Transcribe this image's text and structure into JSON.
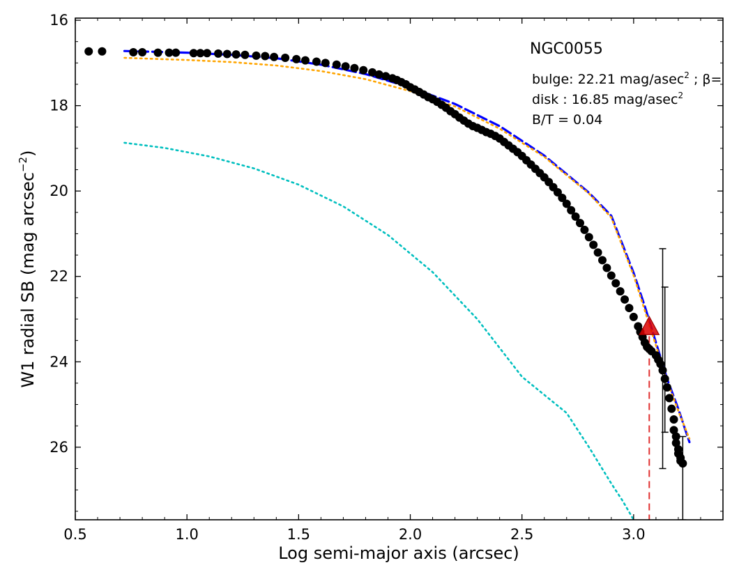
{
  "chart_data": {
    "type": "scatter",
    "xlabel": "Log semi-major axis (arcsec)",
    "ylabel_main": "W1 radial SB (mag arcsec",
    "ylabel_sup": "−2",
    "ylabel_close": ")",
    "xlim": [
      0.5,
      3.4
    ],
    "ylim": [
      27.7,
      15.95
    ],
    "y_inverted": true,
    "grid": false,
    "x_ticks": [
      0.5,
      1.0,
      1.5,
      2.0,
      2.5,
      3.0
    ],
    "x_tick_labels": [
      "0.5",
      "1.0",
      "1.5",
      "2.0",
      "2.5",
      "3.0"
    ],
    "y_ticks": [
      16,
      18,
      20,
      22,
      24,
      26
    ],
    "y_tick_labels": [
      "16",
      "18",
      "20",
      "22",
      "24",
      "26"
    ],
    "annotations": {
      "galaxy": "NGC0055",
      "bulge_prefix": "bulge: 22.21 mag/asec",
      "bulge_sup": "2",
      "bulge_suffix": " ; β=",
      "disk_prefix": "disk  : 16.85 mag/asec",
      "disk_sup": "2",
      "bt": "B/T = 0.04"
    },
    "series": [
      {
        "kind": "points",
        "color": "#000000",
        "x": [
          0.56,
          0.62,
          0.76,
          0.8,
          0.87,
          0.92,
          0.95,
          1.03,
          1.06,
          1.09,
          1.14,
          1.18,
          1.22,
          1.26,
          1.31,
          1.35,
          1.39,
          1.44,
          1.49,
          1.53,
          1.58,
          1.62,
          1.67,
          1.71,
          1.75,
          1.79,
          1.83,
          1.86,
          1.89,
          1.92,
          1.94,
          1.96,
          1.98,
          2.0,
          2.02,
          2.04,
          2.06,
          2.08,
          2.1,
          2.12,
          2.14,
          2.16,
          2.18,
          2.2,
          2.22,
          2.24,
          2.26,
          2.28,
          2.3,
          2.32,
          2.34,
          2.36,
          2.38,
          2.4,
          2.42,
          2.44,
          2.46,
          2.48,
          2.5,
          2.52,
          2.54,
          2.56,
          2.58,
          2.6,
          2.62,
          2.64,
          2.66,
          2.68,
          2.7,
          2.72,
          2.74,
          2.76,
          2.78,
          2.8,
          2.82,
          2.84,
          2.86,
          2.88,
          2.9,
          2.92,
          2.94,
          2.96,
          2.98,
          3.0,
          3.02,
          3.03,
          3.04,
          3.05,
          3.06,
          3.07,
          3.08,
          3.1,
          3.11,
          3.12,
          3.13,
          3.14,
          3.15,
          3.16,
          3.17,
          3.18,
          3.18,
          3.19,
          3.19,
          3.2,
          3.2,
          3.21,
          3.21,
          3.22
        ],
        "y": [
          16.73,
          16.73,
          16.75,
          16.75,
          16.76,
          16.76,
          16.76,
          16.77,
          16.77,
          16.77,
          16.78,
          16.79,
          16.8,
          16.81,
          16.83,
          16.84,
          16.86,
          16.88,
          16.91,
          16.94,
          16.97,
          17.0,
          17.04,
          17.08,
          17.12,
          17.17,
          17.22,
          17.27,
          17.31,
          17.36,
          17.4,
          17.45,
          17.5,
          17.57,
          17.62,
          17.68,
          17.74,
          17.8,
          17.85,
          17.91,
          17.98,
          18.05,
          18.13,
          18.2,
          18.28,
          18.35,
          18.42,
          18.48,
          18.52,
          18.57,
          18.62,
          18.66,
          18.71,
          18.77,
          18.85,
          18.93,
          19.01,
          19.09,
          19.18,
          19.28,
          19.38,
          19.48,
          19.58,
          19.68,
          19.79,
          19.91,
          20.03,
          20.16,
          20.3,
          20.45,
          20.6,
          20.75,
          20.91,
          21.08,
          21.26,
          21.44,
          21.62,
          21.8,
          21.98,
          22.16,
          22.35,
          22.54,
          22.74,
          22.95,
          23.17,
          23.3,
          23.42,
          23.55,
          23.65,
          23.7,
          23.75,
          23.85,
          23.95,
          24.05,
          24.2,
          24.4,
          24.6,
          24.85,
          25.1,
          25.35,
          25.6,
          25.75,
          25.9,
          26.05,
          26.15,
          26.25,
          26.32,
          26.38
        ]
      },
      {
        "kind": "curve",
        "name": "",
        "style": "dashed",
        "color": "#0000ff",
        "x": [
          0.72,
          1.0,
          1.2,
          1.4,
          1.6,
          1.8,
          2.0,
          2.2,
          2.4,
          2.6,
          2.8,
          2.9,
          3.0,
          3.05,
          3.1,
          3.15,
          3.2,
          3.25
        ],
        "y": [
          16.72,
          16.76,
          16.81,
          16.89,
          17.04,
          17.26,
          17.57,
          17.96,
          18.48,
          19.17,
          20.04,
          20.58,
          21.92,
          22.7,
          23.55,
          24.4,
          25.1,
          25.88
        ]
      },
      {
        "kind": "curve",
        "name": "",
        "style": "dotted",
        "color": "#ffa500",
        "x": [
          0.72,
          1.0,
          1.2,
          1.4,
          1.6,
          1.8,
          2.0,
          2.2,
          2.4,
          2.6,
          2.8,
          2.9,
          3.0,
          3.05,
          3.1,
          3.15,
          3.2,
          3.25
        ],
        "y": [
          16.88,
          16.93,
          16.98,
          17.06,
          17.19,
          17.38,
          17.66,
          18.02,
          18.54,
          19.2,
          20.06,
          20.62,
          21.98,
          22.8,
          23.62,
          24.45,
          25.15,
          25.8
        ]
      },
      {
        "kind": "curve",
        "name": "",
        "style": "dotted",
        "color": "#00bfbf",
        "x": [
          0.72,
          0.9,
          1.1,
          1.3,
          1.5,
          1.7,
          1.9,
          2.1,
          2.3,
          2.5,
          2.7,
          2.8,
          2.9,
          2.95,
          3.0
        ],
        "y": [
          18.87,
          18.99,
          19.19,
          19.47,
          19.85,
          20.36,
          21.03,
          21.9,
          23.0,
          24.35,
          25.2,
          26.0,
          26.85,
          27.25,
          27.7
        ]
      },
      {
        "kind": "errorbars",
        "color": "#000000",
        "x": [
          3.13,
          3.14,
          3.22
        ],
        "y": [
          24.0,
          23.9,
          26.3
        ],
        "lower": [
          21.35,
          22.25,
          25.75
        ],
        "upper": [
          26.5,
          25.65,
          27.7
        ]
      },
      {
        "kind": "marker",
        "shape": "triangle",
        "color": "#dd0000",
        "x": [
          3.07
        ],
        "y": [
          23.2
        ]
      },
      {
        "kind": "vline",
        "style": "dashed",
        "color": "#e03030",
        "x": 3.07,
        "y_from": 23.4,
        "y_to": 27.7
      }
    ]
  }
}
